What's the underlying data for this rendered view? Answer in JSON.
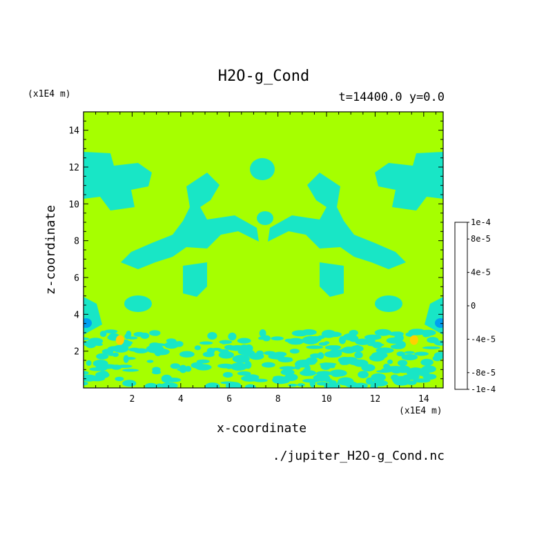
{
  "colors": {
    "background_level": "#a6ff00",
    "negative_small": "#18e6c6",
    "negative_mid": "#00a0f0",
    "negative_large": "#0050ff",
    "negative_max": "#0a10b0",
    "positive_small": "#ffd000",
    "positive_mid": "#ff8000",
    "positive_large": "#ff3000",
    "positive_max": "#ff4040"
  },
  "chart_data": {
    "type": "heatmap",
    "title": "H2O-g_Cond",
    "subtitle": "t=14400.0 y=0.0",
    "xlabel": "x-coordinate",
    "ylabel": "z-coordinate",
    "x_unit": "(x1E4 m)",
    "y_unit": "(x1E4 m)",
    "source_file": "./jupiter_H2O-g_Cond.nc",
    "xlim": [
      0,
      14.8
    ],
    "ylim": [
      0,
      15
    ],
    "xticks": [
      2,
      4,
      6,
      8,
      10,
      12,
      14
    ],
    "yticks": [
      2,
      4,
      6,
      8,
      10,
      12,
      14
    ],
    "colorbar": {
      "range": [
        -0.0001,
        0.0001
      ],
      "levels": [
        -0.0001,
        -8e-05,
        -6e-05,
        -4e-05,
        -2e-05,
        0,
        2e-05,
        4e-05,
        6e-05,
        8e-05,
        0.0001
      ],
      "colors": [
        "#0a10b0",
        "#0050ff",
        "#0088ff",
        "#00b8f0",
        "#18e6c6",
        "#a6ff00",
        "#ffd000",
        "#ff8000",
        "#ff3000",
        "#ff4040"
      ],
      "labels": [
        {
          "value": 0.0001,
          "text": "1e-4"
        },
        {
          "value": 8e-05,
          "text": "8e-5"
        },
        {
          "value": 4e-05,
          "text": "4e-5"
        },
        {
          "value": 0,
          "text": "0"
        },
        {
          "value": -4e-05,
          "text": "-4e-5"
        },
        {
          "value": -8e-05,
          "text": "-8e-5"
        },
        {
          "value": -0.0001,
          "text": "-1e-4"
        }
      ]
    },
    "field_description_values": {
      "dominant_value": 0,
      "patch_value": -2e-05,
      "positive_spots": [
        {
          "x": 1.5,
          "z": 2.6,
          "value": 3e-05
        },
        {
          "x": 13.6,
          "z": 2.6,
          "value": 3e-05
        }
      ],
      "negative_minima": [
        {
          "x": 0.1,
          "z": 3.4,
          "value": -8e-05
        },
        {
          "x": 14.7,
          "z": 3.4,
          "value": -8e-05
        }
      ]
    },
    "grid": false,
    "legend": "right colorbar"
  }
}
